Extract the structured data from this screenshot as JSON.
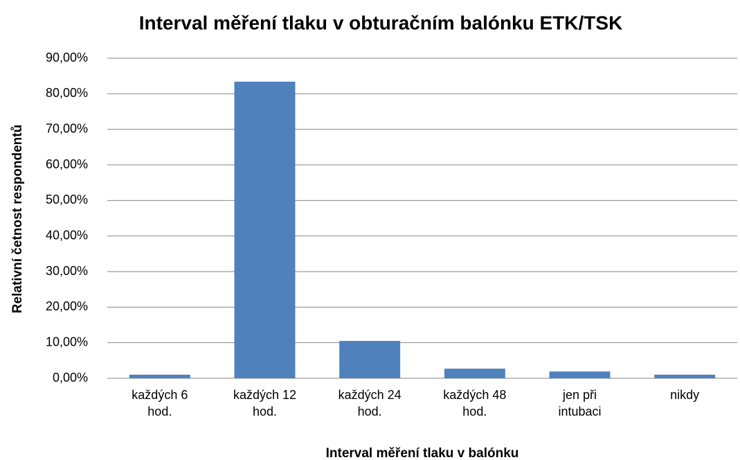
{
  "chart_data": {
    "type": "bar",
    "title": "Interval měření tlaku v obturačním balónku ETK/TSK",
    "x_label": "Interval měření tlaku v balónku",
    "y_label": "Relativní četnost respondentů",
    "categories": [
      "každých 6 hod.",
      "každých 12 hod.",
      "každých 24 hod.",
      "každých 48 hod.",
      "jen při intubaci",
      "nikdy"
    ],
    "values": [
      1.0,
      83.4,
      10.5,
      2.7,
      1.9,
      1.0
    ],
    "color": "#4f81bd",
    "ylim": [
      0,
      90
    ],
    "yticks": [
      {
        "value": 0,
        "label": "0,00%"
      },
      {
        "value": 10,
        "label": "10,00%"
      },
      {
        "value": 20,
        "label": "20,00%"
      },
      {
        "value": 30,
        "label": "30,00%"
      },
      {
        "value": 40,
        "label": "40,00%"
      },
      {
        "value": 50,
        "label": "50,00%"
      },
      {
        "value": 60,
        "label": "60,00%"
      },
      {
        "value": 70,
        "label": "70,00%"
      },
      {
        "value": 80,
        "label": "80,00%"
      },
      {
        "value": 90,
        "label": "90,00%"
      }
    ],
    "grid": true
  }
}
